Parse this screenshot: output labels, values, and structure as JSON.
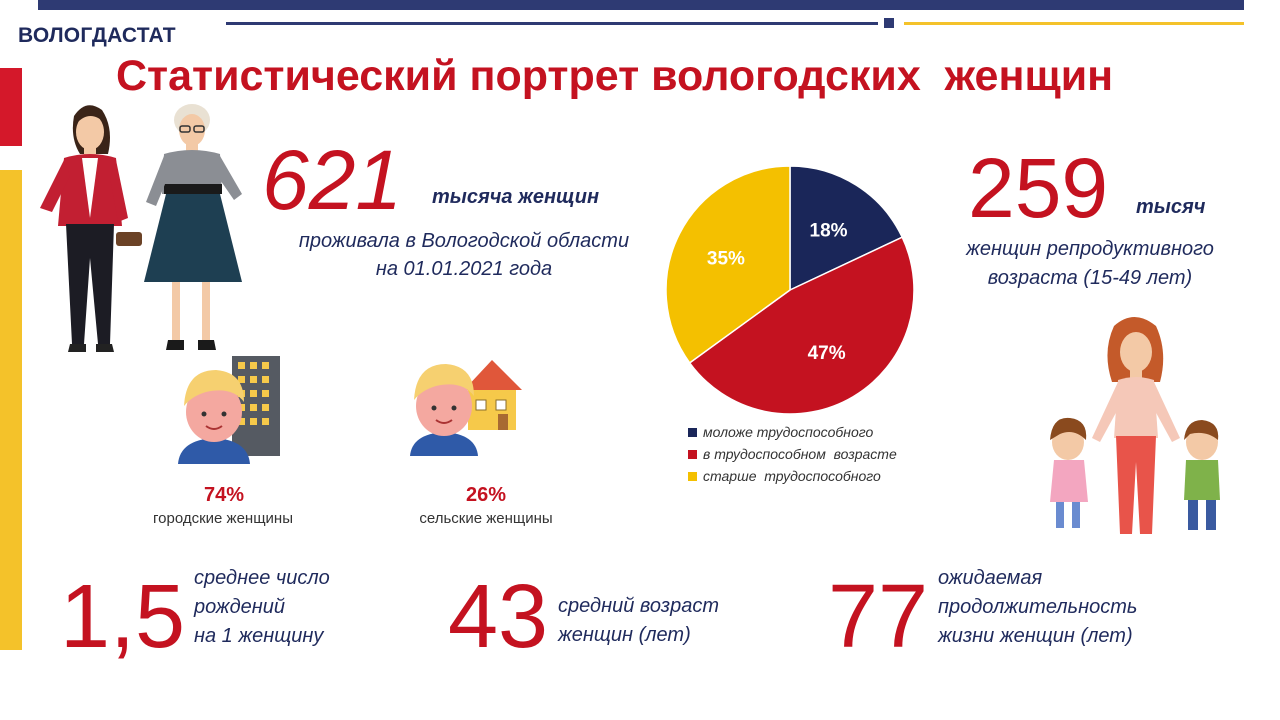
{
  "header": {
    "brand": "ВОЛОГДАСТАТ",
    "title": "Статистический портрет вологодских  женщин"
  },
  "colors": {
    "navy": "#1f2a5c",
    "red": "#c41220",
    "gold": "#f4c22a"
  },
  "population": {
    "value": "621",
    "unit": "тысяча женщин",
    "desc_line1": "проживала в Вологодской области",
    "desc_line2": "на 01.01.2021 года"
  },
  "reproductive": {
    "value": "259",
    "unit": "тысяч",
    "desc_line1": "женщин репродуктивного",
    "desc_line2": "возраста (15-49 лет)"
  },
  "urban": {
    "pct": "74%",
    "label": "городские женщины",
    "icon": "city-woman-icon"
  },
  "rural": {
    "pct": "26%",
    "label": "сельские женщины",
    "icon": "rural-woman-icon"
  },
  "chart_data": {
    "type": "pie",
    "categories": [
      "моложе трудоспособного",
      "в трудоспособном  возрасте",
      "старше  трудоспособного"
    ],
    "values": [
      18,
      47,
      35
    ],
    "labels": [
      "18%",
      "47%",
      "35%"
    ],
    "colors": [
      "#1a2659",
      "#c41220",
      "#f4c000"
    ],
    "legend_position": "bottom"
  },
  "stats": [
    {
      "value": "1,5",
      "line1": "среднее число",
      "line2": "рождений",
      "line3": "на 1 женщину"
    },
    {
      "value": "43",
      "line1": "средний возраст",
      "line2": "женщин (лет)",
      "line3": ""
    },
    {
      "value": "77",
      "line1": "ожидаемая",
      "line2": "продолжительность",
      "line3": "жизни женщин (лет)"
    }
  ]
}
